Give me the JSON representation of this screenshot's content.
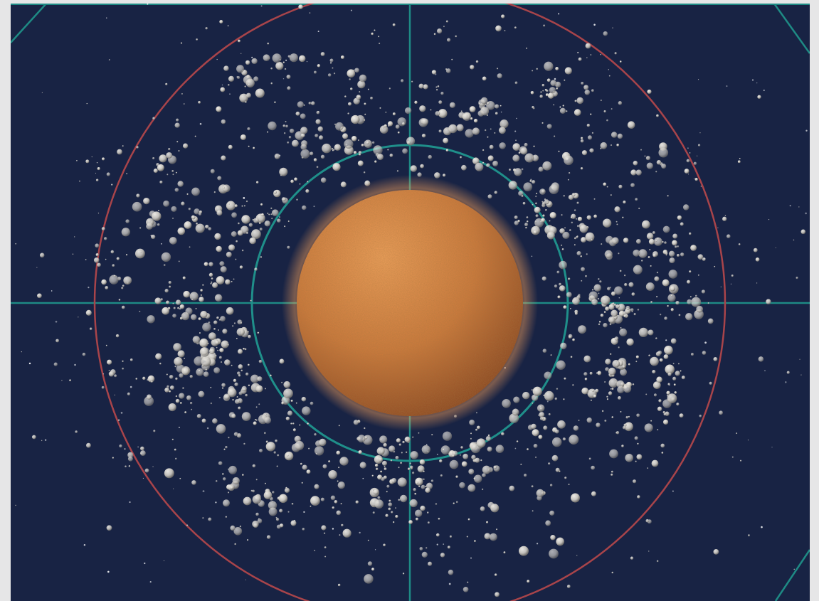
{
  "viewport": {
    "background_color": "#182344",
    "frame_color": "#e6e6e7"
  },
  "scene": {
    "planet": {
      "color_light": "#f2a15b",
      "color_mid": "#cf7a3c",
      "color_dark": "#8a4520",
      "glow_color": "#f4a15c"
    },
    "inner_orbit": {
      "color": "#1f8f8a"
    },
    "outer_orbit": {
      "color": "#a8444a"
    },
    "crosshair": {
      "color": "#1e8a84"
    },
    "debris": {
      "color": "#c9c6c0",
      "shadow_color": "#6d6b68",
      "count": 1700
    },
    "stars": {
      "color": "#ffffff",
      "count": 90
    }
  }
}
